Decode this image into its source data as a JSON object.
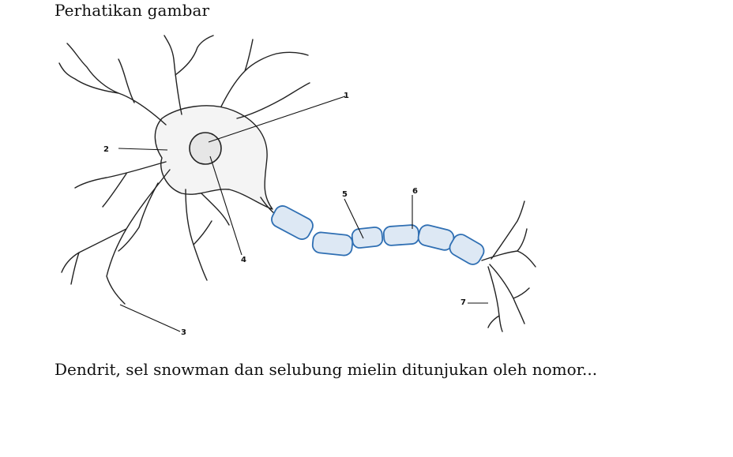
{
  "document": {
    "heading": "Perhatikan gambar",
    "question": "Dendrit, sel snowman dan selubung mielin ditunjukan oleh nomor..."
  },
  "figure": {
    "labels": {
      "n1": "1",
      "n2": "2",
      "n3": "3",
      "n4": "4",
      "n5": "5",
      "n6": "6",
      "n7": "7"
    },
    "colors": {
      "line": "#222222",
      "myelin_stroke": "#2f6fb3",
      "myelin_fill": "#dde8f4"
    }
  }
}
